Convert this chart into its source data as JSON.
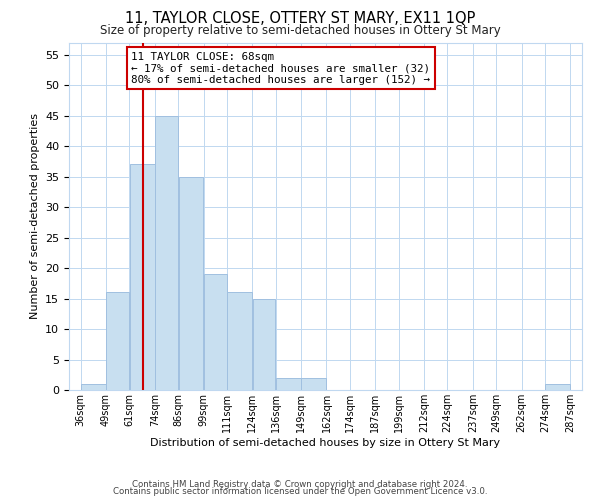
{
  "title": "11, TAYLOR CLOSE, OTTERY ST MARY, EX11 1QP",
  "subtitle": "Size of property relative to semi-detached houses in Ottery St Mary",
  "xlabel": "Distribution of semi-detached houses by size in Ottery St Mary",
  "ylabel": "Number of semi-detached properties",
  "footer_line1": "Contains HM Land Registry data © Crown copyright and database right 2024.",
  "footer_line2": "Contains public sector information licensed under the Open Government Licence v3.0.",
  "annotation_title": "11 TAYLOR CLOSE: 68sqm",
  "annotation_line1": "← 17% of semi-detached houses are smaller (32)",
  "annotation_line2": "80% of semi-detached houses are larger (152) →",
  "subject_value": 68,
  "bar_edges": [
    36,
    49,
    61,
    74,
    86,
    99,
    111,
    124,
    136,
    149,
    162,
    174,
    187,
    199,
    212,
    224,
    237,
    249,
    262,
    274,
    287
  ],
  "bar_heights": [
    1,
    16,
    37,
    45,
    35,
    19,
    16,
    15,
    2,
    2,
    0,
    0,
    0,
    0,
    0,
    0,
    0,
    0,
    0,
    1
  ],
  "bar_color": "#c8dff0",
  "bar_edge_color": "#a0c0e0",
  "subject_line_color": "#cc0000",
  "annotation_box_edge_color": "#cc0000",
  "ylim": [
    0,
    57
  ],
  "yticks": [
    0,
    5,
    10,
    15,
    20,
    25,
    30,
    35,
    40,
    45,
    50,
    55
  ],
  "tick_labels": [
    "36sqm",
    "49sqm",
    "61sqm",
    "74sqm",
    "86sqm",
    "99sqm",
    "111sqm",
    "124sqm",
    "136sqm",
    "149sqm",
    "162sqm",
    "174sqm",
    "187sqm",
    "199sqm",
    "212sqm",
    "224sqm",
    "237sqm",
    "249sqm",
    "262sqm",
    "274sqm",
    "287sqm"
  ],
  "background_color": "#ffffff",
  "grid_color": "#c0d8f0",
  "figsize": [
    6.0,
    5.0
  ],
  "dpi": 100
}
